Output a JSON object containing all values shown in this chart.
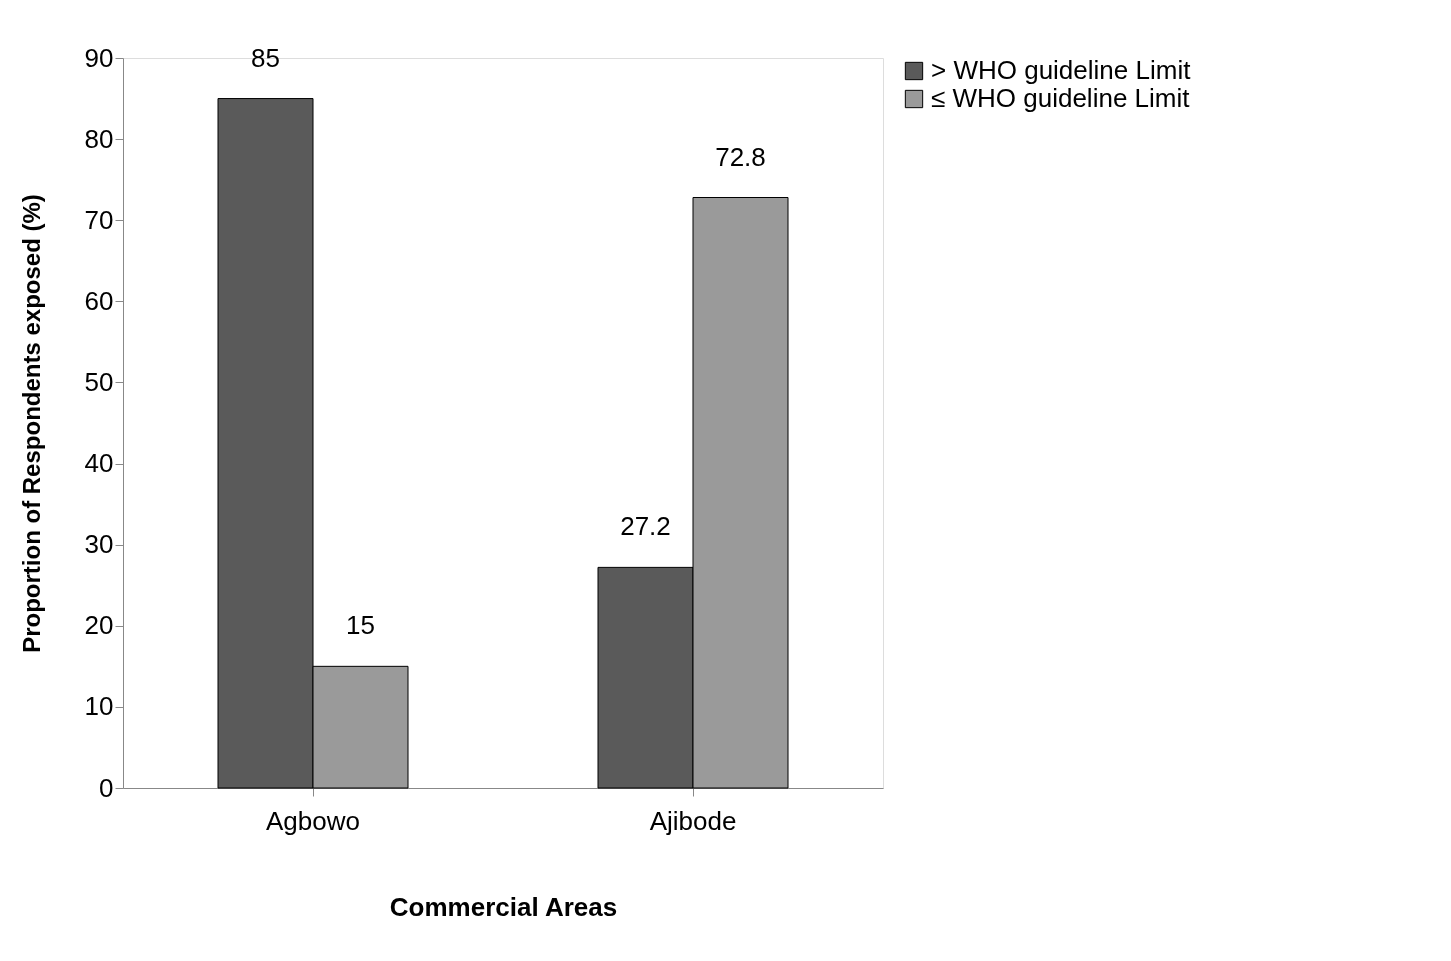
{
  "chart_data": {
    "type": "bar",
    "xlabel": "Commercial Areas",
    "ylabel": "Proportion of Respondents exposed (%)",
    "categories": [
      "Agbowo",
      "Ajibode"
    ],
    "series": [
      {
        "name": "> WHO guideline Limit",
        "color": "#5a5a5a",
        "values": [
          85,
          27.2
        ]
      },
      {
        "name": "≤ WHO guideline Limit",
        "color": "#9a9a9a",
        "values": [
          15,
          72.8
        ]
      }
    ],
    "ylim": [
      0,
      90
    ],
    "yticks": [
      0,
      10,
      20,
      30,
      40,
      50,
      60,
      70,
      80,
      90
    ],
    "grid": false,
    "legend": "right",
    "data_labels": true
  }
}
